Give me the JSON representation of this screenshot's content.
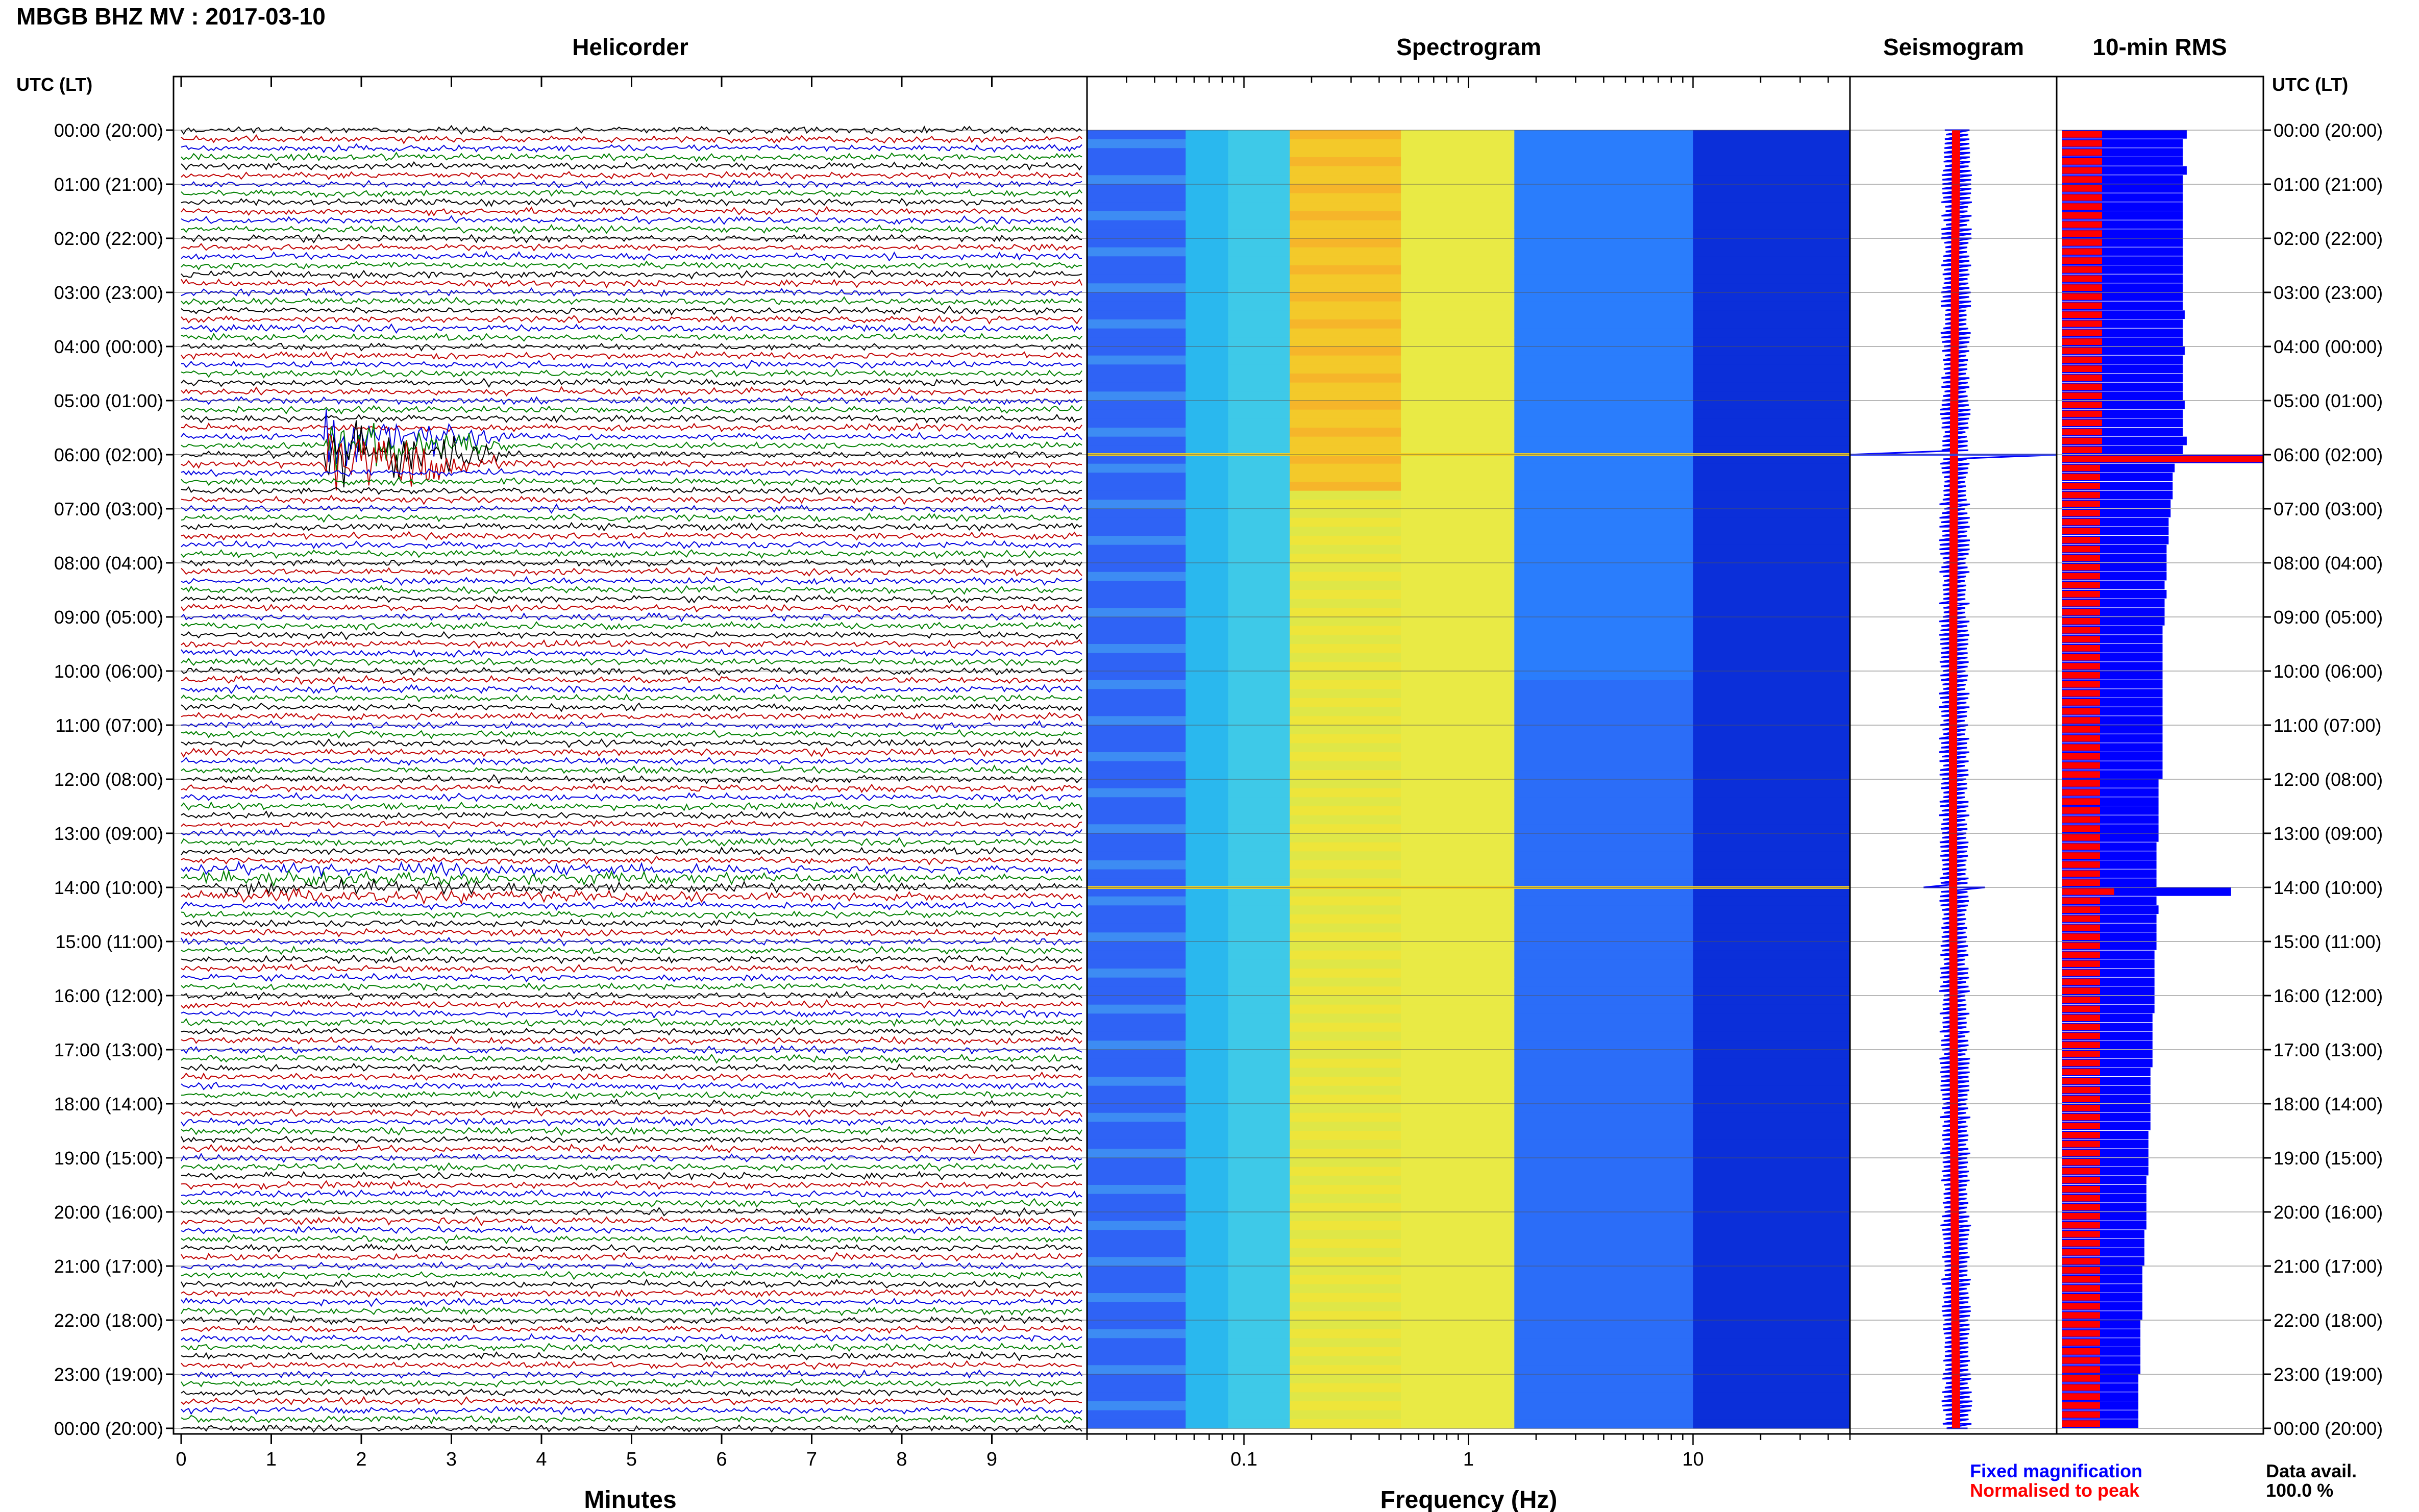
{
  "page_title": "MBGB BHZ MV : 2017-03-10",
  "panels": {
    "helicorder": "Helicorder",
    "spectrogram": "Spectrogram",
    "seismogram": "Seismogram",
    "rms": "10-min RMS"
  },
  "time_axis_label": "UTC (LT)",
  "time_labels": [
    "00:00 (20:00)",
    "01:00 (21:00)",
    "02:00 (22:00)",
    "03:00 (23:00)",
    "04:00 (00:00)",
    "05:00 (01:00)",
    "06:00 (02:00)",
    "07:00 (03:00)",
    "08:00 (04:00)",
    "09:00 (05:00)",
    "10:00 (06:00)",
    "11:00 (07:00)",
    "12:00 (08:00)",
    "13:00 (09:00)",
    "14:00 (10:00)",
    "15:00 (11:00)",
    "16:00 (12:00)",
    "17:00 (13:00)",
    "18:00 (14:00)",
    "19:00 (15:00)",
    "20:00 (16:00)",
    "21:00 (17:00)",
    "22:00 (18:00)",
    "23:00 (19:00)",
    "00:00 (20:00)"
  ],
  "minutes_axis": {
    "label": "Minutes",
    "ticks": [
      "0",
      "1",
      "2",
      "3",
      "4",
      "5",
      "6",
      "7",
      "8",
      "9"
    ]
  },
  "frequency_axis": {
    "label": "Frequency (Hz)",
    "ticks": [
      "0.1",
      "1",
      "10"
    ],
    "scale": "log",
    "range_hz": [
      0.02,
      50
    ]
  },
  "legend": {
    "fixed": "Fixed magnification",
    "normalised": "Normalised to peak",
    "fixed_color": "#0000ff",
    "normalised_color": "#ff0000"
  },
  "data_avail": {
    "label": "Data avail.",
    "value": "100.0 %"
  },
  "colors": {
    "trace_cycle": [
      "#000000",
      "#c00000",
      "#0000e0",
      "#008000"
    ],
    "rms_fixed": "#0000ff",
    "rms_normalised": "#ff0000"
  },
  "chart_data": [
    {
      "type": "line",
      "name": "Helicorder",
      "x_unit": "minutes",
      "xlim": [
        0,
        10
      ],
      "rows_per_hour": 6,
      "hours": 24,
      "events": [
        {
          "hour": 5.9,
          "minute_start": 1.6,
          "minute_end": 3.7,
          "peak_amplitude_rows": 4
        },
        {
          "hour": 13.95,
          "minute_start": 0.2,
          "minute_end": 10.0,
          "peak_amplitude_rows": 0.5
        }
      ]
    },
    {
      "type": "heatmap",
      "name": "Spectrogram",
      "x_unit": "Hz",
      "x_scale": "log",
      "xlim": [
        0.02,
        50
      ],
      "ylim_hours": [
        0,
        24
      ],
      "colormap": [
        "#1a3cff",
        "#27c4f0",
        "#f4e81f",
        "#f7a81e",
        "#2a7dfc",
        "#0a2ad8"
      ],
      "band_edges_hz": [
        0.02,
        0.055,
        0.085,
        0.16,
        0.5,
        1.6,
        10,
        50
      ],
      "event_rows_hour": [
        6.0,
        14.0
      ]
    },
    {
      "type": "bar",
      "name": "10-min RMS",
      "series": [
        {
          "name": "Fixed magnification",
          "values": [
            0.62,
            0.6,
            0.6,
            0.6,
            0.62,
            0.6,
            0.6,
            0.6,
            0.6,
            0.6,
            0.6,
            0.6,
            0.6,
            0.6,
            0.6,
            0.6,
            0.6,
            0.6,
            0.6,
            0.6,
            0.61,
            0.6,
            0.6,
            0.6,
            0.61,
            0.6,
            0.6,
            0.6,
            0.6,
            0.6,
            0.61,
            0.6,
            0.6,
            0.6,
            0.62,
            0.6,
            1.0,
            0.56,
            0.55,
            0.55,
            0.55,
            0.54,
            0.54,
            0.53,
            0.53,
            0.53,
            0.52,
            0.52,
            0.52,
            0.52,
            0.51,
            0.52,
            0.51,
            0.51,
            0.51,
            0.5,
            0.5,
            0.5,
            0.5,
            0.5,
            0.5,
            0.5,
            0.5,
            0.5,
            0.5,
            0.5,
            0.5,
            0.5,
            0.5,
            0.5,
            0.5,
            0.5,
            0.48,
            0.48,
            0.48,
            0.48,
            0.48,
            0.48,
            0.48,
            0.47,
            0.47,
            0.47,
            0.47,
            0.47,
            0.84,
            0.47,
            0.48,
            0.47,
            0.47,
            0.47,
            0.47,
            0.46,
            0.46,
            0.46,
            0.46,
            0.46,
            0.46,
            0.46,
            0.45,
            0.45,
            0.45,
            0.45,
            0.45,
            0.45,
            0.44,
            0.44,
            0.44,
            0.44,
            0.44,
            0.44,
            0.44,
            0.43,
            0.43,
            0.43,
            0.43,
            0.43,
            0.42,
            0.42,
            0.42,
            0.42,
            0.42,
            0.42,
            0.41,
            0.41,
            0.41,
            0.41,
            0.4,
            0.4,
            0.4,
            0.4,
            0.4,
            0.4,
            0.39,
            0.39,
            0.39,
            0.39,
            0.39,
            0.39,
            0.38,
            0.38,
            0.38,
            0.38,
            0.38,
            0.38
          ]
        },
        {
          "name": "Normalised to peak",
          "values": [
            0.2,
            0.2,
            0.2,
            0.2,
            0.2,
            0.2,
            0.2,
            0.2,
            0.2,
            0.2,
            0.2,
            0.2,
            0.2,
            0.2,
            0.2,
            0.2,
            0.2,
            0.2,
            0.2,
            0.2,
            0.2,
            0.2,
            0.2,
            0.2,
            0.2,
            0.2,
            0.2,
            0.2,
            0.2,
            0.2,
            0.2,
            0.2,
            0.2,
            0.2,
            0.2,
            0.2,
            1.0,
            0.19,
            0.19,
            0.19,
            0.19,
            0.19,
            0.19,
            0.19,
            0.19,
            0.19,
            0.19,
            0.19,
            0.19,
            0.19,
            0.19,
            0.19,
            0.19,
            0.19,
            0.19,
            0.19,
            0.19,
            0.19,
            0.19,
            0.19,
            0.19,
            0.19,
            0.19,
            0.19,
            0.19,
            0.19,
            0.19,
            0.19,
            0.19,
            0.19,
            0.19,
            0.19,
            0.19,
            0.19,
            0.19,
            0.19,
            0.19,
            0.19,
            0.19,
            0.19,
            0.19,
            0.19,
            0.19,
            0.19,
            0.26,
            0.19,
            0.19,
            0.19,
            0.19,
            0.19,
            0.19,
            0.19,
            0.19,
            0.19,
            0.19,
            0.19,
            0.19,
            0.19,
            0.19,
            0.19,
            0.19,
            0.19,
            0.19,
            0.19,
            0.19,
            0.19,
            0.19,
            0.19,
            0.19,
            0.19,
            0.19,
            0.19,
            0.19,
            0.19,
            0.19,
            0.19,
            0.19,
            0.19,
            0.19,
            0.19,
            0.19,
            0.19,
            0.19,
            0.19,
            0.19,
            0.19,
            0.19,
            0.19,
            0.19,
            0.19,
            0.19,
            0.19,
            0.19,
            0.19,
            0.19,
            0.19,
            0.19,
            0.19,
            0.19,
            0.19,
            0.19,
            0.19,
            0.19,
            0.19
          ]
        }
      ]
    }
  ]
}
